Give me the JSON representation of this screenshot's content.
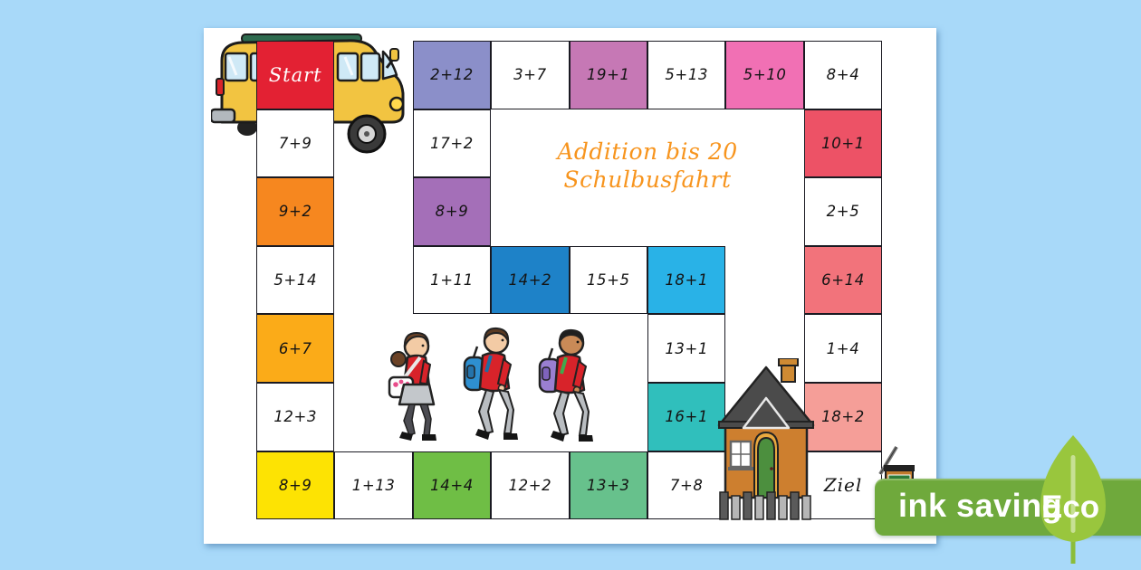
{
  "page": {
    "title_line1": "Addition bis 20",
    "title_line2": "Schulbusfahrt",
    "title_color": "#f7941d"
  },
  "board": {
    "cells": [
      {
        "row": 1,
        "col": 1,
        "label": "Start",
        "color": "#e32133",
        "text_color": "#ffffff",
        "type": "start"
      },
      {
        "row": 1,
        "col": 3,
        "label": "2+12",
        "color": "#8b8fc9"
      },
      {
        "row": 1,
        "col": 4,
        "label": "3+7",
        "color": "#ffffff"
      },
      {
        "row": 1,
        "col": 5,
        "label": "19+1",
        "color": "#c678b5"
      },
      {
        "row": 1,
        "col": 6,
        "label": "5+13",
        "color": "#ffffff"
      },
      {
        "row": 1,
        "col": 7,
        "label": "5+10",
        "color": "#f170b4"
      },
      {
        "row": 1,
        "col": 8,
        "label": "8+4",
        "color": "#ffffff"
      },
      {
        "row": 2,
        "col": 1,
        "label": "7+9",
        "color": "#ffffff"
      },
      {
        "row": 2,
        "col": 3,
        "label": "17+2",
        "color": "#ffffff"
      },
      {
        "row": 2,
        "col": 8,
        "label": "10+1",
        "color": "#ed5266"
      },
      {
        "row": 3,
        "col": 1,
        "label": "9+2",
        "color": "#f6871f"
      },
      {
        "row": 3,
        "col": 3,
        "label": "8+9",
        "color": "#a46fb8"
      },
      {
        "row": 3,
        "col": 8,
        "label": "2+5",
        "color": "#ffffff"
      },
      {
        "row": 4,
        "col": 1,
        "label": "5+14",
        "color": "#ffffff"
      },
      {
        "row": 4,
        "col": 3,
        "label": "1+11",
        "color": "#ffffff"
      },
      {
        "row": 4,
        "col": 4,
        "label": "14+2",
        "color": "#1e82c8"
      },
      {
        "row": 4,
        "col": 5,
        "label": "15+5",
        "color": "#ffffff"
      },
      {
        "row": 4,
        "col": 6,
        "label": "18+1",
        "color": "#29b2e7"
      },
      {
        "row": 4,
        "col": 8,
        "label": "6+14",
        "color": "#f2737b"
      },
      {
        "row": 5,
        "col": 1,
        "label": "6+7",
        "color": "#fbab18"
      },
      {
        "row": 5,
        "col": 6,
        "label": "13+1",
        "color": "#ffffff"
      },
      {
        "row": 5,
        "col": 8,
        "label": "1+4",
        "color": "#ffffff"
      },
      {
        "row": 6,
        "col": 1,
        "label": "12+3",
        "color": "#ffffff"
      },
      {
        "row": 6,
        "col": 6,
        "label": "16+1",
        "color": "#30bfbc"
      },
      {
        "row": 6,
        "col": 8,
        "label": "18+2",
        "color": "#f59e98"
      },
      {
        "row": 7,
        "col": 1,
        "label": "8+9",
        "color": "#fde303"
      },
      {
        "row": 7,
        "col": 2,
        "label": "1+13",
        "color": "#ffffff"
      },
      {
        "row": 7,
        "col": 3,
        "label": "14+4",
        "color": "#6fbe45"
      },
      {
        "row": 7,
        "col": 4,
        "label": "12+2",
        "color": "#ffffff"
      },
      {
        "row": 7,
        "col": 5,
        "label": "13+3",
        "color": "#67c18c"
      },
      {
        "row": 7,
        "col": 6,
        "label": "7+8",
        "color": "#ffffff"
      },
      {
        "row": 7,
        "col": 8,
        "label": "Ziel",
        "color": "#ffffff",
        "type": "ziel"
      }
    ]
  },
  "badge": {
    "label": "ink saving",
    "eco_label": "Eco",
    "badge_color": "#6fa93c",
    "leaf_color": "#99c63d"
  },
  "icons": {
    "bus": "school-bus-icon",
    "children": "walking-children-icon",
    "school": "school-building-icon",
    "sign": "school-sign-icon",
    "leaf": "eco-leaf-icon"
  },
  "colors": {
    "background": "#a8d9f9",
    "page": "#ffffff",
    "cell_border": "#1a1a22"
  }
}
